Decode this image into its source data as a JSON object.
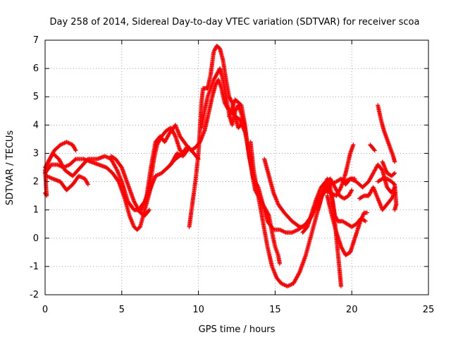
{
  "chart_data": {
    "type": "scatter",
    "title": "Day 258 of 2014, Sidereal Day-to-day VTEC variation (SDTVAR) for receiver scoa",
    "xlabel": "GPS time / hours",
    "ylabel": "SDTVAR / TECUs",
    "xlim": [
      0,
      25
    ],
    "ylim": [
      -2,
      7
    ],
    "xticks": [
      0,
      5,
      10,
      15,
      20,
      25
    ],
    "yticks": [
      -2,
      -1,
      0,
      1,
      2,
      3,
      4,
      5,
      6,
      7
    ],
    "grid": true,
    "marker": "plus",
    "colors": {
      "marks": "#ff0000",
      "frame": "#000000",
      "grid": "#a0a0a0"
    },
    "series": [
      {
        "values": [
          [
            0.0,
            1.6
          ],
          [
            0.1,
            1.5
          ],
          [
            0.0,
            2.4
          ],
          [
            0.3,
            2.8
          ],
          [
            0.6,
            3.1
          ],
          [
            1.0,
            3.3
          ],
          [
            1.4,
            3.4
          ],
          [
            1.8,
            3.3
          ],
          [
            2.0,
            3.1
          ]
        ]
      },
      {
        "values": [
          [
            0.0,
            2.3
          ],
          [
            0.4,
            2.6
          ],
          [
            0.8,
            2.6
          ],
          [
            1.2,
            2.5
          ],
          [
            1.6,
            2.6
          ],
          [
            2.0,
            2.8
          ],
          [
            2.5,
            2.8
          ],
          [
            3.0,
            2.7
          ],
          [
            3.5,
            2.6
          ],
          [
            4.0,
            2.5
          ],
          [
            4.4,
            2.3
          ],
          [
            4.8,
            2.0
          ],
          [
            5.2,
            1.4
          ],
          [
            5.5,
            0.8
          ],
          [
            5.8,
            0.4
          ],
          [
            6.0,
            0.3
          ],
          [
            6.2,
            0.4
          ],
          [
            6.5,
            1.0
          ],
          [
            6.8,
            1.6
          ],
          [
            7.0,
            2.0
          ]
        ]
      },
      {
        "values": [
          [
            0.0,
            2.5
          ],
          [
            0.5,
            3.0
          ],
          [
            0.9,
            2.8
          ],
          [
            1.3,
            2.4
          ],
          [
            1.8,
            2.2
          ],
          [
            2.3,
            2.5
          ],
          [
            2.8,
            2.8
          ],
          [
            3.4,
            2.8
          ],
          [
            3.9,
            2.9
          ],
          [
            4.3,
            2.8
          ],
          [
            4.7,
            2.4
          ],
          [
            5.0,
            2.0
          ],
          [
            5.4,
            1.3
          ],
          [
            5.8,
            1.0
          ],
          [
            6.1,
            1.0
          ],
          [
            6.5,
            1.3
          ],
          [
            6.9,
            1.8
          ],
          [
            7.2,
            2.2
          ],
          [
            7.6,
            2.3
          ],
          [
            8.0,
            2.5
          ],
          [
            8.5,
            2.8
          ],
          [
            9.0,
            3.0
          ],
          [
            9.2,
            3.2
          ]
        ]
      },
      {
        "values": [
          [
            0.1,
            2.2
          ],
          [
            0.5,
            2.1
          ],
          [
            1.0,
            2.0
          ],
          [
            1.4,
            1.7
          ],
          [
            1.8,
            1.9
          ],
          [
            2.2,
            2.2
          ],
          [
            2.6,
            2.1
          ],
          [
            2.8,
            1.9
          ]
        ]
      },
      {
        "values": [
          [
            4.3,
            2.9
          ],
          [
            4.6,
            2.8
          ],
          [
            5.0,
            2.5
          ],
          [
            5.4,
            1.9
          ],
          [
            5.8,
            1.3
          ],
          [
            6.2,
            0.9
          ],
          [
            6.5,
            0.8
          ],
          [
            6.8,
            1.0
          ]
        ]
      },
      {
        "values": [
          [
            6.3,
            1.0
          ],
          [
            6.7,
            1.6
          ],
          [
            6.9,
            2.1
          ],
          [
            7.1,
            2.8
          ],
          [
            7.3,
            3.3
          ],
          [
            7.6,
            3.6
          ],
          [
            7.9,
            3.8
          ],
          [
            8.2,
            3.9
          ],
          [
            8.5,
            3.6
          ],
          [
            8.8,
            3.1
          ],
          [
            9.1,
            3.0
          ]
        ]
      },
      {
        "values": [
          [
            6.6,
            1.4
          ],
          [
            6.9,
            2.5
          ],
          [
            7.2,
            3.4
          ],
          [
            7.5,
            3.6
          ],
          [
            7.8,
            3.4
          ],
          [
            8.1,
            3.7
          ],
          [
            8.5,
            4.0
          ],
          [
            8.8,
            3.6
          ],
          [
            9.2,
            3.3
          ],
          [
            9.5,
            3.1
          ],
          [
            9.8,
            3.2
          ],
          [
            10.1,
            3.4
          ],
          [
            10.4,
            3.8
          ],
          [
            10.7,
            4.5
          ],
          [
            10.9,
            5.0
          ],
          [
            11.1,
            5.4
          ],
          [
            11.3,
            5.6
          ],
          [
            11.5,
            5.3
          ],
          [
            11.7,
            4.8
          ],
          [
            11.9,
            4.6
          ],
          [
            12.1,
            4.5
          ],
          [
            12.4,
            4.3
          ],
          [
            12.7,
            4.2
          ],
          [
            13.0,
            3.8
          ]
        ]
      },
      {
        "values": [
          [
            9.4,
            0.4
          ],
          [
            9.6,
            1.2
          ],
          [
            9.8,
            2.0
          ],
          [
            10.0,
            3.0
          ],
          [
            10.1,
            3.9
          ],
          [
            10.2,
            4.8
          ],
          [
            10.3,
            5.3
          ],
          [
            10.6,
            5.3
          ],
          [
            10.8,
            5.8
          ],
          [
            11.0,
            6.6
          ],
          [
            11.2,
            6.8
          ],
          [
            11.4,
            6.7
          ],
          [
            11.6,
            6.3
          ],
          [
            11.8,
            5.6
          ],
          [
            12.0,
            5.0
          ],
          [
            12.2,
            4.8
          ],
          [
            12.4,
            4.3
          ],
          [
            12.6,
            3.9
          ],
          [
            12.9,
            4.1
          ],
          [
            13.1,
            3.6
          ]
        ]
      },
      {
        "values": [
          [
            10.2,
            3.9
          ],
          [
            10.4,
            4.5
          ],
          [
            10.6,
            5.0
          ],
          [
            10.8,
            5.3
          ],
          [
            11.0,
            5.6
          ],
          [
            11.2,
            5.8
          ],
          [
            11.4,
            6.0
          ],
          [
            11.6,
            5.6
          ],
          [
            11.8,
            5.0
          ],
          [
            12.0,
            4.4
          ],
          [
            12.2,
            4.0
          ],
          [
            12.4,
            4.5
          ],
          [
            12.6,
            4.7
          ],
          [
            12.8,
            4.4
          ],
          [
            13.0,
            4.0
          ],
          [
            13.1,
            3.6
          ],
          [
            13.3,
            3.0
          ],
          [
            13.5,
            2.3
          ],
          [
            13.7,
            1.7
          ],
          [
            13.9,
            1.5
          ],
          [
            14.2,
            1.2
          ],
          [
            14.6,
            0.8
          ],
          [
            14.8,
            0.2
          ],
          [
            15.0,
            -0.3
          ],
          [
            15.2,
            -0.6
          ],
          [
            15.3,
            -0.9
          ]
        ]
      },
      {
        "values": [
          [
            12.0,
            4.3
          ],
          [
            12.4,
            4.9
          ],
          [
            12.8,
            4.7
          ],
          [
            13.0,
            4.1
          ],
          [
            13.3,
            2.9
          ],
          [
            13.6,
            2.1
          ],
          [
            13.9,
            1.8
          ],
          [
            14.2,
            1.2
          ],
          [
            14.5,
            0.6
          ],
          [
            14.9,
            0.3
          ],
          [
            15.3,
            0.3
          ],
          [
            15.7,
            0.2
          ],
          [
            16.1,
            0.2
          ],
          [
            16.5,
            0.3
          ],
          [
            17.0,
            0.5
          ],
          [
            17.4,
            0.8
          ],
          [
            17.8,
            1.3
          ],
          [
            18.2,
            1.6
          ],
          [
            18.6,
            1.9
          ],
          [
            19.0,
            2.0
          ],
          [
            19.3,
            2.1
          ],
          [
            19.6,
            1.9
          ],
          [
            19.9,
            2.1
          ],
          [
            20.2,
            2.1
          ]
        ]
      },
      {
        "values": [
          [
            13.4,
            3.4
          ],
          [
            13.6,
            2.4
          ],
          [
            13.9,
            1.5
          ],
          [
            14.2,
            0.6
          ],
          [
            14.5,
            -0.3
          ],
          [
            14.8,
            -1.0
          ],
          [
            15.1,
            -1.4
          ],
          [
            15.4,
            -1.6
          ],
          [
            15.8,
            -1.7
          ],
          [
            16.2,
            -1.6
          ],
          [
            16.6,
            -1.2
          ],
          [
            17.0,
            -0.6
          ],
          [
            17.3,
            0.0
          ],
          [
            17.6,
            0.6
          ],
          [
            17.9,
            1.2
          ],
          [
            18.2,
            1.8
          ],
          [
            18.4,
            2.1
          ],
          [
            18.6,
            1.8
          ],
          [
            18.8,
            1.1
          ],
          [
            19.0,
            0.0
          ],
          [
            19.2,
            -1.1
          ],
          [
            19.3,
            -1.7
          ]
        ]
      },
      {
        "values": [
          [
            14.3,
            2.8
          ],
          [
            14.6,
            2.2
          ],
          [
            14.9,
            1.6
          ],
          [
            15.2,
            1.2
          ],
          [
            15.6,
            0.9
          ],
          [
            16.1,
            0.6
          ],
          [
            16.6,
            0.4
          ],
          [
            17.0,
            0.4
          ],
          [
            17.4,
            0.8
          ],
          [
            17.8,
            1.4
          ],
          [
            18.2,
            1.7
          ],
          [
            18.6,
            1.6
          ],
          [
            19.0,
            1.5
          ],
          [
            19.3,
            1.8
          ],
          [
            19.6,
            2.3
          ],
          [
            19.9,
            3.0
          ],
          [
            20.1,
            3.3
          ]
        ]
      },
      {
        "values": [
          [
            16.8,
            0.2
          ],
          [
            17.1,
            0.4
          ],
          [
            17.4,
            0.9
          ],
          [
            17.7,
            1.4
          ],
          [
            18.0,
            1.8
          ],
          [
            18.3,
            2.0
          ],
          [
            18.6,
            2.1
          ],
          [
            18.9,
            1.8
          ],
          [
            19.2,
            1.5
          ],
          [
            19.5,
            1.4
          ],
          [
            19.8,
            1.5
          ],
          [
            20.0,
            1.7
          ]
        ]
      },
      {
        "values": [
          [
            17.8,
            1.0
          ],
          [
            18.1,
            1.6
          ],
          [
            18.4,
            1.9
          ],
          [
            18.7,
            1.5
          ],
          [
            18.9,
            0.8
          ],
          [
            19.1,
            0.6
          ],
          [
            19.4,
            0.6
          ],
          [
            19.7,
            0.5
          ],
          [
            20.0,
            0.4
          ],
          [
            20.3,
            0.5
          ],
          [
            20.6,
            0.7
          ],
          [
            20.9,
            0.6
          ]
        ]
      },
      {
        "values": [
          [
            18.4,
            1.5
          ],
          [
            18.7,
            0.8
          ],
          [
            19.0,
            0.2
          ],
          [
            19.3,
            -0.3
          ],
          [
            19.6,
            -0.6
          ],
          [
            19.9,
            -0.5
          ],
          [
            20.2,
            0.0
          ],
          [
            20.5,
            0.5
          ],
          [
            20.8,
            0.9
          ],
          [
            21.0,
            0.9
          ]
        ]
      },
      {
        "values": [
          [
            19.5,
            2.0
          ],
          [
            19.9,
            2.1
          ],
          [
            20.3,
            2.0
          ],
          [
            20.7,
            1.8
          ],
          [
            21.1,
            2.0
          ],
          [
            21.4,
            2.3
          ],
          [
            21.7,
            2.6
          ],
          [
            22.0,
            2.4
          ],
          [
            22.3,
            1.8
          ],
          [
            22.6,
            1.6
          ],
          [
            22.8,
            1.8
          ]
        ]
      },
      {
        "values": [
          [
            20.5,
            1.4
          ],
          [
            20.8,
            1.5
          ],
          [
            21.1,
            1.5
          ],
          [
            21.4,
            1.8
          ],
          [
            21.7,
            1.4
          ],
          [
            22.0,
            1.0
          ],
          [
            22.3,
            1.2
          ],
          [
            22.6,
            1.4
          ],
          [
            22.8,
            1.6
          ]
        ]
      },
      {
        "values": [
          [
            21.7,
            2.0
          ],
          [
            22.0,
            2.1
          ],
          [
            22.3,
            2.1
          ],
          [
            22.6,
            2.0
          ],
          [
            22.8,
            1.9
          ],
          [
            22.9,
            1.2
          ],
          [
            22.8,
            1.0
          ]
        ]
      },
      {
        "values": [
          [
            21.7,
            4.7
          ],
          [
            21.9,
            4.2
          ],
          [
            22.1,
            3.8
          ],
          [
            22.3,
            3.5
          ],
          [
            22.5,
            3.2
          ],
          [
            22.7,
            2.9
          ],
          [
            22.8,
            2.7
          ]
        ]
      },
      {
        "values": [
          [
            21.2,
            3.3
          ],
          [
            21.5,
            3.1
          ]
        ]
      },
      {
        "values": [
          [
            22.0,
            2.7
          ],
          [
            22.3,
            2.3
          ],
          [
            22.6,
            2.2
          ],
          [
            22.8,
            2.3
          ]
        ]
      },
      {
        "values": [
          [
            7.8,
            2.4
          ],
          [
            8.2,
            2.6
          ],
          [
            8.6,
            3.0
          ],
          [
            9.0,
            2.9
          ],
          [
            9.4,
            3.2
          ],
          [
            9.7,
            3.0
          ],
          [
            10.0,
            2.8
          ]
        ]
      }
    ]
  }
}
